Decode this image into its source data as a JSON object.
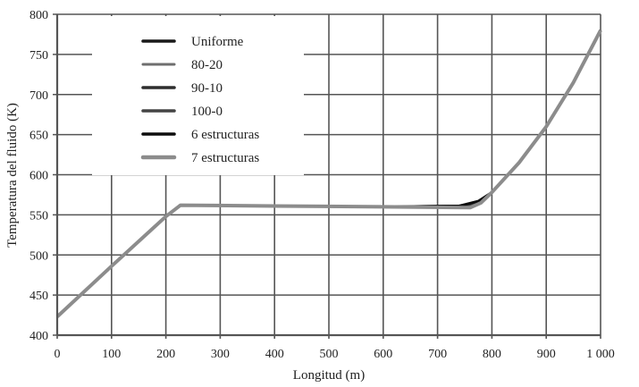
{
  "chart_data": {
    "type": "line",
    "title": "",
    "xlabel": "Longitud (m)",
    "ylabel": "Temperatura del fluido (K)",
    "xlim": [
      0,
      1000
    ],
    "ylim": [
      400,
      800
    ],
    "xticks": [
      0,
      100,
      200,
      300,
      400,
      500,
      600,
      700,
      800,
      900,
      1000
    ],
    "xtick_labels": [
      "0",
      "100",
      "200",
      "300",
      "400",
      "500",
      "600",
      "700",
      "800",
      "900",
      "1 000"
    ],
    "yticks": [
      400,
      450,
      500,
      550,
      600,
      650,
      700,
      750,
      800
    ],
    "grid": true,
    "legend_position": "upper left (inside)",
    "series": [
      {
        "name": "Uniforme",
        "color": "#1a1a1a",
        "width": 3,
        "x": [
          0,
          100,
          200,
          227,
          400,
          600,
          740,
          780,
          800,
          850,
          900,
          950,
          1000
        ],
        "y": [
          423,
          486,
          548,
          562,
          561,
          560,
          560,
          566,
          578,
          615,
          660,
          715,
          780
        ]
      },
      {
        "name": "80-20",
        "color": "#6e6e6e",
        "width": 2.5,
        "x": [
          0,
          100,
          200,
          227,
          400,
          600,
          745,
          780,
          800,
          850,
          900,
          950,
          1000
        ],
        "y": [
          423,
          486,
          548,
          562,
          561,
          560,
          560,
          566,
          578,
          615,
          660,
          715,
          780
        ]
      },
      {
        "name": "90-10",
        "color": "#2e2e2e",
        "width": 3,
        "x": [
          0,
          100,
          200,
          227,
          400,
          600,
          740,
          780,
          800,
          850,
          900,
          950,
          1000
        ],
        "y": [
          423,
          486,
          548,
          562,
          561,
          560,
          561,
          567,
          578,
          615,
          660,
          715,
          780
        ]
      },
      {
        "name": "100-0",
        "color": "#444444",
        "width": 3,
        "x": [
          0,
          100,
          200,
          227,
          400,
          600,
          745,
          780,
          800,
          850,
          900,
          950,
          1000
        ],
        "y": [
          423,
          486,
          548,
          562,
          561,
          560,
          561,
          566,
          578,
          615,
          660,
          715,
          780
        ]
      },
      {
        "name": "6 estructuras",
        "color": "#0d0d0d",
        "width": 3,
        "x": [
          0,
          100,
          200,
          227,
          400,
          600,
          740,
          775,
          800,
          850,
          900,
          950,
          1000
        ],
        "y": [
          423,
          486,
          548,
          562,
          561,
          560,
          561,
          567,
          578,
          615,
          660,
          715,
          780
        ]
      },
      {
        "name": "7 estructuras",
        "color": "#8c8c8c",
        "width": 4,
        "x": [
          0,
          100,
          200,
          227,
          400,
          600,
          760,
          780,
          800,
          850,
          900,
          950,
          1000
        ],
        "y": [
          423,
          486,
          548,
          562,
          561,
          560,
          559,
          565,
          578,
          615,
          660,
          715,
          780
        ]
      }
    ]
  },
  "colors": {
    "grid": "#555555",
    "axis": "#555555",
    "text": "#222222"
  }
}
